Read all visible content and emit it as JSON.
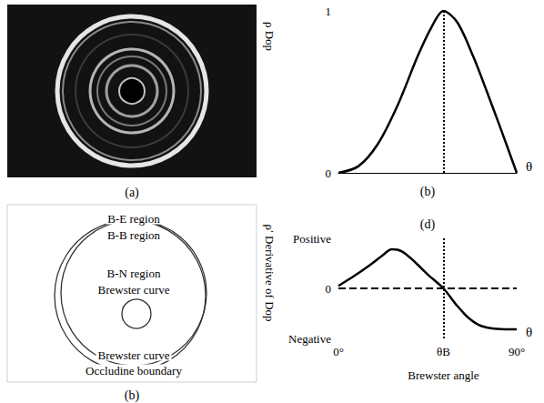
{
  "photo": {
    "label": "(a)"
  },
  "diagram": {
    "label": "(b)",
    "texts": [
      "B-E region",
      "B-B region",
      "B-N region",
      "Brewster curve",
      "Brewster curve",
      "Occludine boundary"
    ]
  },
  "chart_data": [
    {
      "type": "line",
      "label": "(b)",
      "y_label": "ρ Dop",
      "x_label": "θ",
      "x": [
        0,
        10,
        20,
        30,
        40,
        47,
        53,
        60,
        68,
        75,
        82,
        90
      ],
      "values": [
        0,
        0.04,
        0.18,
        0.42,
        0.72,
        0.9,
        1,
        0.93,
        0.72,
        0.5,
        0.27,
        0
      ],
      "color": "#000000",
      "line_style": "solid",
      "xlim": [
        0,
        90
      ],
      "ylim": [
        0,
        1
      ],
      "yticks": [
        0,
        1
      ],
      "tick_labels": "y",
      "vline": 53,
      "grid": false
    },
    {
      "type": "line",
      "label": "(d)",
      "y_label": "ρ′ Derivative of Dop",
      "x_label": "θ",
      "annotation": "Brewster angle",
      "x": [
        0,
        8,
        16,
        22,
        27,
        32,
        38,
        45,
        53,
        60,
        66,
        72,
        80,
        90
      ],
      "values": [
        0.05,
        0.25,
        0.47,
        0.65,
        0.78,
        0.74,
        0.55,
        0.28,
        0,
        -0.35,
        -0.6,
        -0.75,
        -0.81,
        -0.82
      ],
      "color": "#000000",
      "line_style": "solid",
      "xlim": [
        0,
        90
      ],
      "xticks": [
        {
          "value": 0,
          "label": "0°"
        },
        {
          "value": 53,
          "label": "θB"
        },
        {
          "value": 90,
          "label": "90°"
        }
      ],
      "ylim": [
        -1,
        1
      ],
      "yticks": [
        {
          "value": 1,
          "label": "Positive"
        },
        0,
        {
          "value": -1,
          "label": "Negative"
        }
      ],
      "vline": 53,
      "hline": 0,
      "grid": false
    }
  ]
}
